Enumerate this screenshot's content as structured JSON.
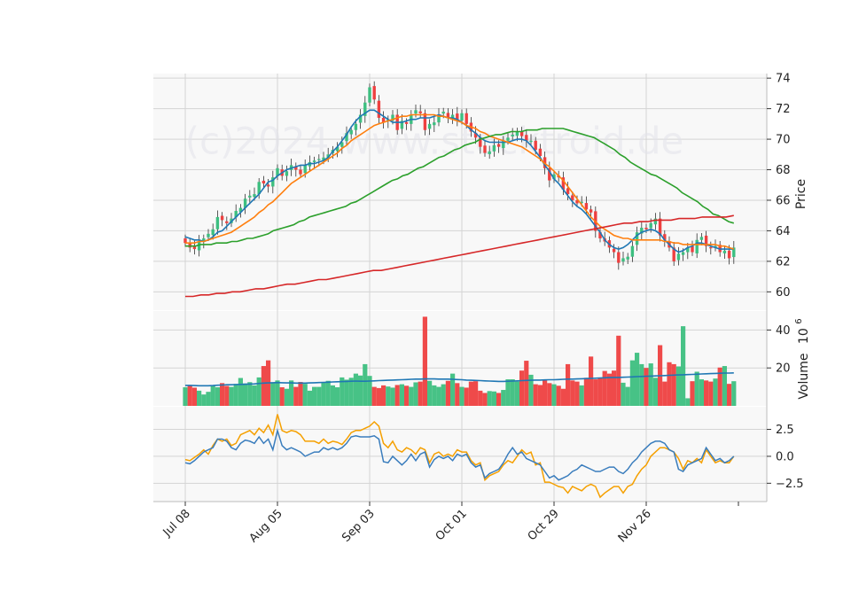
{
  "watermark": "(c)2024 www.stocktroid.de",
  "colors": {
    "up": "#3dbf80",
    "down": "#ee4040",
    "sma_short": "#1f77b4",
    "sma_mid": "#ff7f0e",
    "sma_long": "#2ca02c",
    "sma_200": "#d62728",
    "volume_ma": "#1f77b4",
    "macd": "#f5a000",
    "signal": "#3a7dbd",
    "panel_bg": "#f8f8f8",
    "grid": "#d4d4d4"
  },
  "chart_data": [
    {
      "type": "candlestick",
      "ylabel": "Price",
      "ylim": [
        58.8,
        74.3
      ],
      "yticks": [
        60,
        62,
        64,
        66,
        68,
        70,
        72,
        74
      ],
      "xtick_labels": [
        "Jul 08",
        "Aug 05",
        "Sep 03",
        "Oct 01",
        "Oct 29",
        "Nov 26"
      ],
      "xtick_index": [
        0,
        20,
        40,
        60,
        80,
        100
      ],
      "n_bars": 120,
      "close": [
        63.2,
        62.9,
        62.8,
        63.3,
        63.5,
        63.8,
        64.1,
        64.9,
        64.7,
        64.5,
        64.8,
        65.3,
        65.5,
        66.1,
        66.3,
        66.4,
        67.2,
        67.1,
        66.9,
        67.5,
        68.1,
        67.6,
        67.9,
        68.3,
        68.0,
        67.7,
        68.3,
        68.5,
        68.6,
        68.7,
        68.8,
        69.0,
        69.3,
        69.5,
        69.8,
        70.4,
        70.6,
        71.0,
        71.6,
        72.4,
        73.4,
        72.6,
        71.4,
        71.1,
        71.3,
        71.6,
        70.6,
        71.2,
        71.0,
        71.6,
        71.9,
        71.7,
        70.6,
        71.0,
        71.1,
        71.6,
        71.8,
        71.4,
        71.6,
        71.3,
        71.7,
        71.0,
        70.5,
        70.1,
        69.5,
        69.1,
        69.2,
        69.6,
        69.5,
        69.9,
        70.1,
        70.3,
        70.5,
        70.2,
        69.9,
        69.9,
        69.3,
        68.9,
        68.1,
        67.3,
        67.7,
        67.5,
        66.7,
        66.4,
        66.0,
        65.8,
        65.9,
        65.4,
        65.2,
        64.0,
        63.5,
        63.3,
        62.9,
        62.6,
        61.9,
        62.2,
        62.3,
        63.0,
        63.9,
        64.2,
        64.1,
        64.5,
        64.8,
        63.7,
        63.4,
        62.9,
        62.0,
        62.5,
        62.6,
        62.9,
        62.6,
        63.4,
        63.6,
        63.0,
        62.9,
        63.0,
        62.6,
        62.7,
        62.2,
        62.9
      ],
      "series": [
        {
          "name": "",
          "role": "sma_short",
          "values": [
            63.6,
            63.5,
            63.4,
            63.4,
            63.3,
            63.4,
            63.6,
            63.9,
            64.0,
            64.3,
            64.6,
            64.9,
            65.2,
            65.5,
            65.8,
            66.1,
            66.4,
            66.8,
            67.2,
            67.3,
            67.6,
            67.8,
            68.0,
            68.1,
            68.2,
            68.3,
            68.3,
            68.4,
            68.4,
            68.5,
            68.6,
            68.8,
            69.2,
            69.5,
            69.9,
            70.3,
            70.8,
            71.2,
            71.5,
            71.7,
            71.9,
            71.9,
            71.7,
            71.5,
            71.3,
            71.1,
            71.1,
            71.1,
            71.2,
            71.3,
            71.3,
            71.4,
            71.4,
            71.4,
            71.5,
            71.6,
            71.5,
            71.4,
            71.4,
            71.3,
            71.1,
            70.9,
            70.6,
            70.4,
            70.1,
            69.9,
            69.8,
            69.8,
            69.8,
            69.8,
            69.8,
            69.9,
            70.0,
            70.0,
            69.9,
            69.6,
            69.2,
            68.8,
            68.3,
            67.9,
            67.4,
            67.1,
            66.7,
            66.3,
            65.9,
            65.6,
            65.4,
            65.1,
            64.7,
            64.3,
            63.9,
            63.4,
            63.1,
            62.9,
            62.8,
            62.9,
            63.1,
            63.4,
            63.7,
            63.9,
            64.0,
            64.1,
            64.0,
            63.8,
            63.4,
            63.1,
            62.8,
            62.6,
            62.7,
            62.9,
            63.0,
            63.2,
            63.2,
            63.1,
            63.0,
            62.9,
            62.8,
            62.8,
            62.8,
            62.8
          ]
        },
        {
          "name": "",
          "role": "sma_mid",
          "values": [
            63.2,
            63.2,
            63.2,
            63.3,
            63.3,
            63.4,
            63.5,
            63.6,
            63.7,
            63.8,
            63.9,
            64.1,
            64.3,
            64.5,
            64.7,
            64.9,
            65.2,
            65.4,
            65.7,
            65.9,
            66.2,
            66.5,
            66.8,
            67.1,
            67.3,
            67.5,
            67.7,
            67.9,
            68.1,
            68.3,
            68.5,
            68.7,
            68.9,
            69.1,
            69.4,
            69.6,
            69.9,
            70.1,
            70.3,
            70.5,
            70.7,
            70.9,
            71.0,
            71.1,
            71.2,
            71.3,
            71.4,
            71.5,
            71.5,
            71.6,
            71.6,
            71.6,
            71.6,
            71.6,
            71.6,
            71.5,
            71.5,
            71.4,
            71.3,
            71.2,
            71.1,
            70.9,
            70.8,
            70.7,
            70.5,
            70.4,
            70.2,
            70.1,
            70.0,
            69.9,
            69.8,
            69.7,
            69.6,
            69.5,
            69.3,
            69.1,
            68.9,
            68.7,
            68.4,
            68.2,
            67.9,
            67.6,
            67.3,
            66.9,
            66.5,
            66.1,
            65.7,
            65.3,
            64.9,
            64.6,
            64.3,
            64.1,
            63.9,
            63.7,
            63.6,
            63.5,
            63.5,
            63.4,
            63.4,
            63.4,
            63.4,
            63.4,
            63.4,
            63.4,
            63.3,
            63.3,
            63.2,
            63.2,
            63.1,
            63.1,
            63.1,
            63.1,
            63.1,
            63.1,
            63.1,
            63.1,
            63.0,
            63.0,
            62.9,
            62.8
          ]
        },
        {
          "name": "",
          "role": "sma_long",
          "values": [
            63.0,
            63.0,
            63.0,
            63.1,
            63.1,
            63.1,
            63.2,
            63.2,
            63.2,
            63.3,
            63.3,
            63.4,
            63.5,
            63.5,
            63.6,
            63.7,
            63.8,
            64.0,
            64.1,
            64.2,
            64.3,
            64.4,
            64.6,
            64.7,
            64.9,
            65.0,
            65.1,
            65.2,
            65.3,
            65.4,
            65.5,
            65.6,
            65.8,
            65.9,
            66.1,
            66.3,
            66.5,
            66.7,
            66.9,
            67.1,
            67.3,
            67.4,
            67.6,
            67.7,
            67.9,
            68.1,
            68.2,
            68.4,
            68.6,
            68.8,
            68.9,
            69.1,
            69.3,
            69.4,
            69.6,
            69.7,
            69.8,
            70.0,
            70.1,
            70.2,
            70.3,
            70.3,
            70.4,
            70.5,
            70.5,
            70.5,
            70.6,
            70.6,
            70.6,
            70.7,
            70.7,
            70.7,
            70.7,
            70.7,
            70.6,
            70.5,
            70.4,
            70.3,
            70.2,
            70.1,
            69.9,
            69.7,
            69.5,
            69.3,
            69.0,
            68.8,
            68.5,
            68.3,
            68.1,
            67.9,
            67.7,
            67.6,
            67.4,
            67.2,
            67.0,
            66.8,
            66.5,
            66.3,
            66.1,
            65.9,
            65.6,
            65.4,
            65.1,
            65.0,
            64.8,
            64.6,
            64.5
          ]
        },
        {
          "name": "",
          "role": "sma_200",
          "values": [
            59.7,
            59.7,
            59.8,
            59.8,
            59.9,
            59.9,
            60.0,
            60.0,
            60.1,
            60.2,
            60.2,
            60.3,
            60.4,
            60.5,
            60.5,
            60.6,
            60.7,
            60.8,
            60.8,
            60.9,
            61.0,
            61.1,
            61.2,
            61.3,
            61.4,
            61.4,
            61.5,
            61.6,
            61.7,
            61.8,
            61.9,
            62.0,
            62.1,
            62.2,
            62.3,
            62.4,
            62.5,
            62.6,
            62.7,
            62.8,
            62.9,
            63.0,
            63.1,
            63.2,
            63.3,
            63.4,
            63.5,
            63.6,
            63.7,
            63.8,
            63.9,
            64.0,
            64.1,
            64.2,
            64.3,
            64.4,
            64.5,
            64.5,
            64.6,
            64.6,
            64.7,
            64.7,
            64.7,
            64.8,
            64.8,
            64.8,
            64.9,
            64.9,
            64.9,
            64.9,
            65.0
          ]
        }
      ]
    },
    {
      "type": "bar",
      "ylabel": "Volume",
      "ylabel_exponent": "10",
      "ylabel_exponent_power": "6",
      "ylim": [
        0,
        50
      ],
      "yticks": [
        20,
        40
      ],
      "values": [
        9.8,
        11.0,
        9.6,
        8.0,
        6.0,
        7.4,
        10.8,
        9.8,
        12.0,
        10.5,
        10.0,
        11.6,
        14.7,
        11.8,
        12.5,
        10.8,
        15.0,
        21.0,
        24.0,
        12.4,
        13.4,
        9.8,
        9.0,
        13.4,
        10.0,
        12.6,
        11.6,
        8.0,
        10.0,
        10.0,
        12.4,
        13.2,
        10.8,
        9.8,
        15.0,
        13.8,
        14.8,
        17.0,
        16.0,
        22.0,
        15.8,
        10.0,
        9.4,
        10.8,
        10.2,
        9.6,
        11.0,
        11.4,
        10.6,
        10.0,
        12.4,
        12.8,
        47.0,
        13.2,
        10.8,
        10.0,
        11.4,
        13.2,
        17.0,
        12.0,
        10.0,
        9.6,
        12.8,
        13.0,
        8.0,
        6.8,
        7.8,
        7.6,
        6.8,
        8.4,
        14.0,
        14.0,
        12.8,
        18.6,
        23.8,
        16.4,
        11.4,
        11.0,
        13.4,
        12.0,
        11.4,
        10.6,
        9.0,
        22.0,
        13.4,
        12.8,
        10.8,
        14.8,
        26.0,
        14.0,
        14.8,
        18.4,
        17.0,
        18.6,
        37.0,
        12.2,
        10.0,
        24.0,
        28.0,
        22.0,
        20.0,
        22.4,
        14.8,
        32.0,
        12.8,
        23.0,
        22.0,
        20.8,
        42.0,
        4.0,
        13.0,
        18.0,
        14.0,
        13.4,
        12.8,
        14.4,
        20.2,
        21.0,
        11.6,
        13.0
      ],
      "ma_values": [
        10.8,
        10.8,
        10.7,
        10.6,
        10.6,
        10.6,
        10.7,
        10.9,
        11.0,
        11.1,
        11.1,
        11.2,
        11.3,
        11.4,
        11.5,
        11.6,
        11.8,
        12.0,
        12.1,
        12.2,
        12.3,
        12.2,
        12.1,
        12.1,
        12.0,
        12.0,
        12.0,
        12.1,
        12.2,
        12.3,
        12.4,
        12.5,
        12.6,
        12.7,
        12.8,
        12.9,
        13.0,
        13.1,
        13.0,
        13.0,
        13.1,
        13.2,
        13.3,
        13.4,
        13.5,
        13.6,
        13.7,
        13.8,
        13.9,
        14.0,
        14.1,
        14.1,
        14.2,
        14.2,
        14.2,
        14.1,
        14.1,
        14.1,
        14.0,
        13.9,
        13.8,
        13.6,
        13.5,
        13.4,
        13.3,
        13.2,
        13.1,
        13.0,
        12.9,
        12.9,
        13.0,
        13.1,
        13.2,
        13.3,
        13.4,
        13.5,
        13.6,
        13.6,
        13.7,
        13.8,
        13.8,
        13.9,
        14.0,
        14.1,
        14.1,
        14.2,
        14.3,
        14.4,
        14.5,
        14.6,
        14.7,
        14.8,
        14.9,
        15.0,
        15.0,
        15.1,
        15.2,
        15.3,
        15.4,
        15.5,
        15.6,
        15.7,
        15.8,
        15.9,
        16.0,
        16.1,
        16.2,
        16.3,
        16.4,
        16.5,
        16.6,
        16.7,
        16.8,
        16.9,
        17.0,
        17.1,
        17.2,
        17.3,
        17.3,
        17.4
      ]
    },
    {
      "type": "line",
      "ylim": [
        -4.2,
        4.6
      ],
      "yticks": [
        2.5,
        0.0,
        -2.5
      ],
      "ytick_labels": [
        "2.5",
        "0.0",
        "−2.5"
      ],
      "series": [
        {
          "name": "",
          "role": "macd",
          "values": [
            -0.3,
            -0.4,
            -0.1,
            0.2,
            0.6,
            0.2,
            1.0,
            1.6,
            1.4,
            1.6,
            1.0,
            1.2,
            2.0,
            2.2,
            2.4,
            2.0,
            2.6,
            2.2,
            2.9,
            2.0,
            3.9,
            2.4,
            2.2,
            2.4,
            2.3,
            2.0,
            1.4,
            1.4,
            1.4,
            1.2,
            1.6,
            1.2,
            1.4,
            1.3,
            1.1,
            1.6,
            2.2,
            2.4,
            2.4,
            2.6,
            2.8,
            3.2,
            2.8,
            1.2,
            0.8,
            1.4,
            0.6,
            0.4,
            0.8,
            0.6,
            0.2,
            0.8,
            0.6,
            -0.6,
            0.2,
            0.4,
            0.0,
            0.2,
            0.0,
            0.6,
            0.4,
            0.4,
            -0.4,
            -0.8,
            -0.6,
            -2.2,
            -1.8,
            -1.6,
            -1.4,
            -0.8,
            -0.4,
            -0.6,
            0.0,
            0.6,
            0.2,
            0.4,
            -0.8,
            -0.6,
            -2.4,
            -2.4,
            -2.6,
            -2.8,
            -2.9,
            -3.4,
            -2.8,
            -3.0,
            -3.2,
            -2.8,
            -2.6,
            -2.8,
            -3.8,
            -3.4,
            -3.1,
            -2.8,
            -2.8,
            -3.4,
            -2.8,
            -2.6,
            -1.8,
            -1.2,
            -0.8,
            0.0,
            0.4,
            0.8,
            0.8,
            0.6,
            0.4,
            -0.2,
            -1.2,
            -0.4,
            -0.6,
            -0.2,
            -0.6,
            0.6,
            0.0,
            -0.6,
            -0.4,
            -0.6,
            -0.6,
            0.0
          ]
        },
        {
          "name": "",
          "role": "signal",
          "values": [
            -0.6,
            -0.7,
            -0.4,
            0.0,
            0.4,
            0.6,
            0.8,
            1.6,
            1.6,
            1.4,
            0.8,
            0.6,
            1.2,
            1.5,
            1.4,
            1.2,
            1.8,
            1.2,
            1.6,
            0.6,
            2.4,
            1.0,
            0.6,
            0.8,
            0.6,
            0.4,
            0.0,
            0.2,
            0.4,
            0.4,
            0.8,
            0.6,
            0.8,
            0.6,
            0.8,
            1.2,
            1.8,
            1.9,
            1.8,
            1.8,
            1.8,
            1.9,
            1.6,
            -0.5,
            -0.6,
            0.0,
            -0.4,
            -0.8,
            -0.4,
            0.2,
            -0.4,
            0.2,
            0.4,
            -1.0,
            -0.3,
            0.0,
            -0.2,
            0.0,
            -0.4,
            0.2,
            0.0,
            0.2,
            -0.6,
            -1.0,
            -0.8,
            -2.0,
            -1.6,
            -1.4,
            -1.2,
            -0.6,
            0.2,
            0.8,
            0.2,
            0.4,
            -0.2,
            -0.4,
            -0.6,
            -0.8,
            -1.4,
            -2.0,
            -1.8,
            -2.2,
            -2.0,
            -1.8,
            -1.4,
            -1.2,
            -0.8,
            -1.0,
            -1.2,
            -1.4,
            -1.4,
            -1.2,
            -1.0,
            -1.0,
            -1.4,
            -1.6,
            -1.2,
            -0.6,
            -0.2,
            0.4,
            0.8,
            1.2,
            1.4,
            1.4,
            1.2,
            0.6,
            0.4,
            -1.2,
            -1.4,
            -0.8,
            -0.6,
            -0.4,
            -0.2,
            0.8,
            0.2,
            -0.4,
            -0.2,
            -0.6,
            -0.4,
            0.0
          ]
        }
      ]
    }
  ]
}
